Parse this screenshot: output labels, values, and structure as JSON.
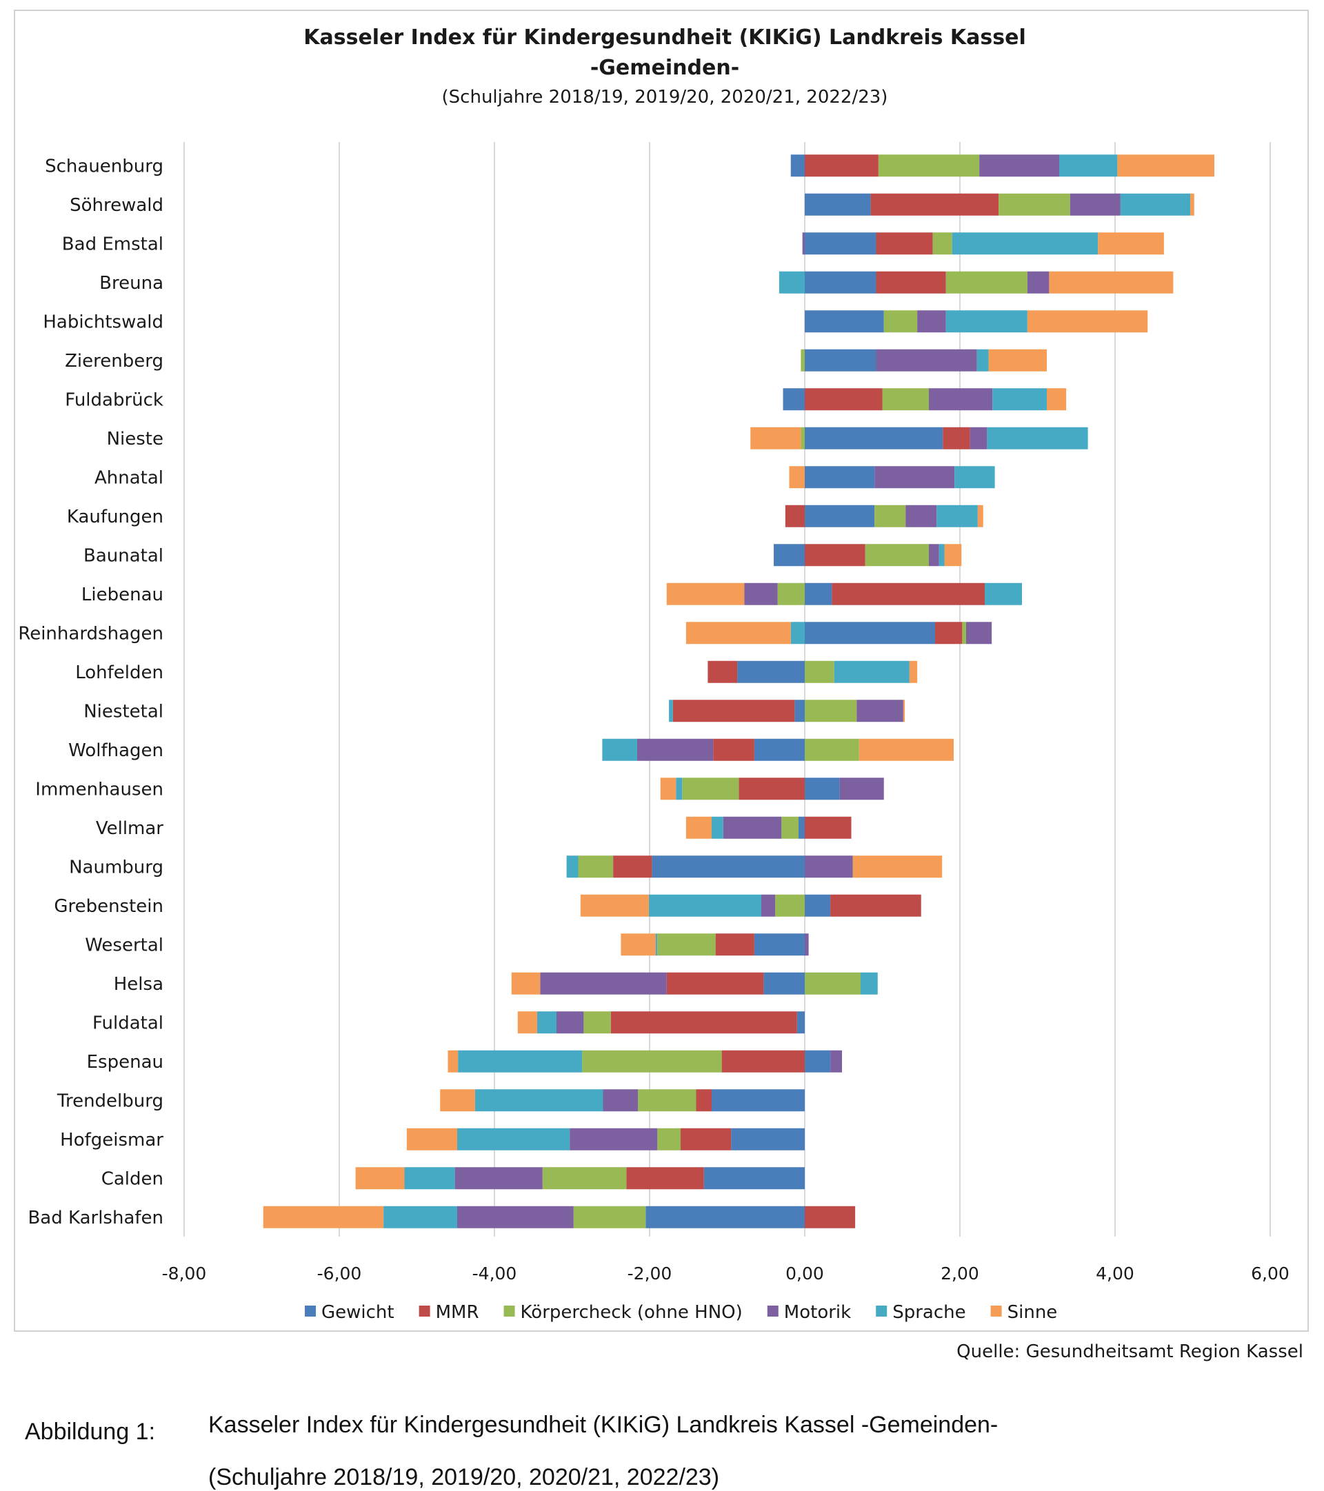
{
  "chart_data": {
    "type": "bar",
    "orientation": "horizontal",
    "stacked": true,
    "title": "Kasseler Index für Kindergesundheit (KIKiG) Landkreis Kassel",
    "title_line2": "-Gemeinden-",
    "subtitle": "(Schuljahre 2018/19, 2019/20, 2020/21, 2022/23)",
    "xlim": [
      -8,
      6
    ],
    "x_ticks": [
      -8,
      -6,
      -4,
      -2,
      0,
      2,
      4,
      6
    ],
    "x_tick_labels": [
      "-8,00",
      "-6,00",
      "-4,00",
      "-2,00",
      "0,00",
      "2,00",
      "4,00",
      "6,00"
    ],
    "grid": true,
    "legend_position": "bottom",
    "categories": [
      "Schauenburg",
      "Söhrewald",
      "Bad Emstal",
      "Breuna",
      "Habichtswald",
      "Zierenberg",
      "Fuldabrück",
      "Nieste",
      "Ahnatal",
      "Kaufungen",
      "Baunatal",
      "Liebenau",
      "Reinhardshagen",
      "Lohfelden",
      "Niestetal",
      "Wolfhagen",
      "Immenhausen",
      "Vellmar",
      "Naumburg",
      "Grebenstein",
      "Wesertal",
      "Helsa",
      "Fuldatal",
      "Espenau",
      "Trendelburg",
      "Hofgeismar",
      "Calden",
      "Bad Karlshafen"
    ],
    "series": [
      {
        "name": "Gewicht",
        "color": "#4a7ebb",
        "values": [
          -0.18,
          0.85,
          0.92,
          0.92,
          1.02,
          0.92,
          -0.28,
          1.78,
          0.9,
          0.9,
          -0.4,
          0.35,
          1.68,
          -0.87,
          -0.13,
          -0.65,
          0.45,
          -0.08,
          -1.97,
          0.33,
          -0.65,
          -0.53,
          -0.1,
          0.33,
          -1.2,
          -0.95,
          -1.3,
          -2.05
        ]
      },
      {
        "name": "MMR",
        "color": "#be4b48",
        "values": [
          0.95,
          1.65,
          0.73,
          0.9,
          0.0,
          0.0,
          1.0,
          0.35,
          0.0,
          -0.25,
          0.78,
          1.97,
          0.35,
          -0.38,
          -1.57,
          -0.53,
          -0.85,
          0.6,
          -0.5,
          1.17,
          -0.5,
          -1.25,
          -2.4,
          -1.07,
          -0.2,
          -0.65,
          -1.0,
          0.65
        ]
      },
      {
        "name": "Körpercheck (ohne HNO)",
        "color": "#98b954",
        "values": [
          1.3,
          0.92,
          0.25,
          1.05,
          0.43,
          -0.05,
          0.6,
          -0.05,
          0.0,
          0.4,
          0.82,
          -0.35,
          0.05,
          0.38,
          0.67,
          0.7,
          -0.73,
          -0.22,
          -0.45,
          -0.38,
          -0.75,
          0.72,
          -0.35,
          -1.8,
          -0.75,
          -0.3,
          -1.08,
          -0.93
        ]
      },
      {
        "name": "Motorik",
        "color": "#7d60a0",
        "values": [
          1.03,
          0.65,
          -0.03,
          0.28,
          0.37,
          1.3,
          0.82,
          0.22,
          1.03,
          0.4,
          0.13,
          -0.43,
          0.33,
          0.0,
          0.6,
          -0.98,
          0.57,
          -0.75,
          0.62,
          -0.18,
          0.05,
          -1.63,
          -0.35,
          0.15,
          -0.45,
          -1.13,
          -1.13,
          -1.5
        ]
      },
      {
        "name": "Sprache",
        "color": "#46aac5",
        "values": [
          0.75,
          0.9,
          1.88,
          -0.33,
          1.05,
          0.15,
          0.7,
          1.3,
          0.52,
          0.53,
          0.07,
          0.48,
          -0.18,
          0.97,
          -0.05,
          -0.45,
          -0.08,
          -0.15,
          -0.15,
          -1.45,
          -0.02,
          0.22,
          -0.25,
          -1.6,
          -1.65,
          -1.45,
          -0.65,
          -0.95
        ]
      },
      {
        "name": "Sinne",
        "color": "#f59d56",
        "values": [
          1.25,
          0.05,
          0.85,
          1.6,
          1.55,
          0.75,
          0.25,
          -0.65,
          -0.2,
          0.07,
          0.22,
          -1.0,
          -1.35,
          0.1,
          0.02,
          1.22,
          -0.2,
          -0.33,
          1.15,
          -0.88,
          -0.45,
          -0.37,
          -0.25,
          -0.13,
          -0.45,
          -0.65,
          -0.63,
          -1.55
        ]
      }
    ]
  },
  "source": "Quelle: Gesundheitsamt Region Kassel",
  "caption": {
    "label": "Abbildung 1:",
    "line1": "Kasseler Index für Kindergesundheit (KIKiG) Landkreis Kassel -Gemeinden-",
    "line2": "(Schuljahre 2018/19, 2019/20, 2020/21, 2022/23)"
  }
}
